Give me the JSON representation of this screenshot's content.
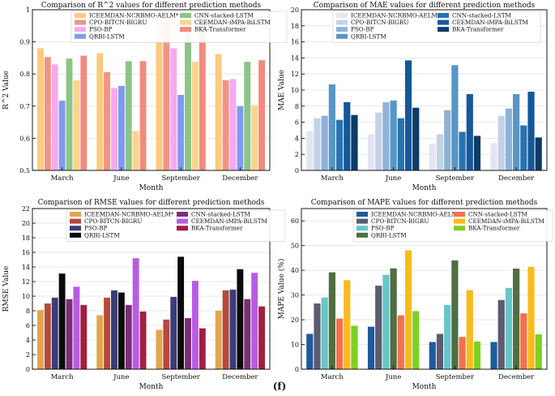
{
  "figure": {
    "caption": "(f)"
  },
  "chart_data": [
    {
      "type": "bar",
      "title": "Comparison of R^2 values for different prediction methods",
      "xlabel": "Month",
      "ylabel": "R^2 Value",
      "categories": [
        "March",
        "June",
        "September",
        "December"
      ],
      "ylim": [
        0.5,
        1.0
      ],
      "yticks": [
        "0.5",
        "0.6",
        "0.7",
        "0.8",
        "0.9",
        "1"
      ],
      "grid": true,
      "legend_columns": 2,
      "series": [
        {
          "name": "ICEEMDAN-NCRBMO-AELM*",
          "color": "#FCCB7E",
          "values": [
            0.88,
            0.865,
            0.968,
            0.862
          ]
        },
        {
          "name": "CPO-BITCN-BIGRU",
          "color": "#F39385",
          "values": [
            0.853,
            0.806,
            0.958,
            0.781
          ]
        },
        {
          "name": "PSO-BP",
          "color": "#F6A9F0",
          "values": [
            0.83,
            0.756,
            0.88,
            0.784
          ]
        },
        {
          "name": "QRBI-LSTM",
          "color": "#7F9BEE",
          "values": [
            0.717,
            0.763,
            0.735,
            0.7
          ]
        },
        {
          "name": "CNN-stacked-LSTM",
          "color": "#8CC585",
          "values": [
            0.848,
            0.84,
            0.944,
            0.838
          ]
        },
        {
          "name": "CEEMDAN-iMPA-BiLSTM",
          "color": "#FBD58D",
          "values": [
            0.78,
            0.623,
            0.838,
            0.703
          ]
        },
        {
          "name": "BKA-Transformer",
          "color": "#F28A7F",
          "values": [
            0.857,
            0.84,
            0.96,
            0.843
          ]
        }
      ]
    },
    {
      "type": "bar",
      "title": "Comparison of MAE values for different prediction methods",
      "xlabel": "Month",
      "ylabel": "MAE Value",
      "categories": [
        "March",
        "June",
        "September",
        "December"
      ],
      "ylim": [
        0,
        20
      ],
      "yticks": [
        "0",
        "2",
        "4",
        "6",
        "8",
        "10",
        "12",
        "14",
        "16",
        "18",
        "20"
      ],
      "grid": true,
      "legend_columns": 2,
      "series": [
        {
          "name": "ICEEMDAN-NCRBMO-AELM*",
          "color": "#E3E6F2",
          "values": [
            4.9,
            4.5,
            3.3,
            3.4
          ]
        },
        {
          "name": "CPO-BITCN-BIGRU",
          "color": "#C4D2E6",
          "values": [
            6.5,
            7.2,
            4.5,
            6.8
          ]
        },
        {
          "name": "PSO-BP",
          "color": "#8FB2D7",
          "values": [
            6.8,
            8.5,
            7.5,
            7.7
          ]
        },
        {
          "name": "QRBI-LSTM",
          "color": "#5796C6",
          "values": [
            10.7,
            8.7,
            13.1,
            9.5
          ]
        },
        {
          "name": "CNN-stacked-LSTM",
          "color": "#2773B0",
          "values": [
            6.3,
            6.5,
            4.8,
            5.6
          ]
        },
        {
          "name": "CEEMDAN-iMPA-BiLSTM",
          "color": "#15589A",
          "values": [
            8.5,
            13.7,
            9.5,
            9.8
          ]
        },
        {
          "name": "BKA-Transformer",
          "color": "#0D3B69",
          "values": [
            6.9,
            7.8,
            4.3,
            4.1
          ]
        }
      ]
    },
    {
      "type": "bar",
      "title": "Comparison of RMSE values for different prediction methods",
      "xlabel": "Month",
      "ylabel": "RMSE Value",
      "categories": [
        "March",
        "June",
        "September",
        "December"
      ],
      "ylim": [
        0,
        22
      ],
      "yticks": [
        "0",
        "2",
        "4",
        "6",
        "8",
        "10",
        "12",
        "14",
        "16",
        "18",
        "20",
        "22"
      ],
      "grid": true,
      "legend_columns": 2,
      "series": [
        {
          "name": "ICEEMDAN-NCRBMO-AELM*",
          "color": "#E2A64D",
          "values": [
            8.1,
            7.4,
            5.4,
            8.0
          ]
        },
        {
          "name": "CPO-BITCN-BIGRU",
          "color": "#B54A3C",
          "values": [
            9.0,
            9.8,
            6.8,
            10.8
          ]
        },
        {
          "name": "PSO-BP",
          "color": "#3A3D79",
          "values": [
            9.8,
            10.8,
            9.9,
            10.9
          ]
        },
        {
          "name": "QRBI-LSTM",
          "color": "#0B0B0B",
          "values": [
            13.1,
            10.5,
            15.4,
            13.7
          ]
        },
        {
          "name": "CNN-stacked-LSTM",
          "color": "#7C2D78",
          "values": [
            9.6,
            8.8,
            7.0,
            9.6
          ]
        },
        {
          "name": "CEEMDAN-iMPA-BiLSTM",
          "color": "#B85CE4",
          "values": [
            11.3,
            15.2,
            12.1,
            13.2
          ]
        },
        {
          "name": "BKA-Transformer",
          "color": "#A21F3F",
          "values": [
            8.8,
            7.9,
            5.6,
            8.6
          ]
        }
      ]
    },
    {
      "type": "bar",
      "title": "Comparison of MAPE values for different prediction methods",
      "xlabel": "Month",
      "ylabel": "MAPE Value (%)",
      "categories": [
        "March",
        "June",
        "September",
        "December"
      ],
      "ylim": [
        0,
        65
      ],
      "yticks": [
        "0",
        "10",
        "20",
        "30",
        "40",
        "50",
        "60"
      ],
      "grid": true,
      "legend_columns": 2,
      "series": [
        {
          "name": "ICEEMDAN-NCRBMO-AELM*",
          "color": "#1F5A9C",
          "values": [
            14.3,
            17.2,
            11.0,
            11.0
          ]
        },
        {
          "name": "CPO-BITCN-BIGRU",
          "color": "#5B5C70",
          "values": [
            26.6,
            33.8,
            14.3,
            28.0
          ]
        },
        {
          "name": "PSO-BP",
          "color": "#67C6C8",
          "values": [
            29.0,
            38.2,
            26.0,
            32.9
          ]
        },
        {
          "name": "QRBI-LSTM",
          "color": "#4F6E41",
          "values": [
            39.2,
            40.8,
            44.0,
            40.7
          ]
        },
        {
          "name": "CNN-stacked-LSTM",
          "color": "#F2714D",
          "values": [
            20.5,
            21.8,
            13.1,
            22.6
          ]
        },
        {
          "name": "CEEMDAN-iMPA-BiLSTM",
          "color": "#F8BB1E",
          "values": [
            36.0,
            48.1,
            32.0,
            41.4
          ]
        },
        {
          "name": "BKA-Transformer",
          "color": "#7DD023",
          "values": [
            17.6,
            23.5,
            11.2,
            14.1
          ]
        }
      ]
    }
  ]
}
